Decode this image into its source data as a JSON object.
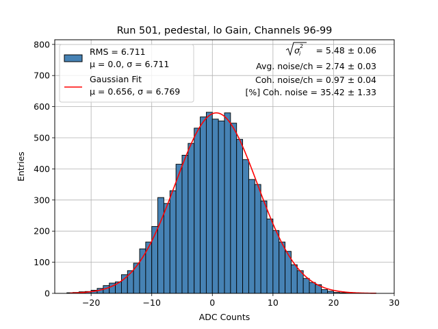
{
  "chart_data": {
    "type": "bar",
    "title": "Run 501, pedestal, lo Gain, Channels 96-99",
    "xlabel": "ADC Counts",
    "ylabel": "Entries",
    "xlim": [
      -26,
      30
    ],
    "ylim": [
      0,
      815
    ],
    "grid": true,
    "xticks": [
      -20,
      -10,
      0,
      10,
      20,
      30
    ],
    "yticks": [
      0,
      100,
      200,
      300,
      400,
      500,
      600,
      700,
      800
    ],
    "bin_width": 1,
    "histogram": {
      "name": "RMS = 6.711",
      "stats_label": "μ = 0.0, σ = 6.711",
      "color": "#4682b4",
      "bin_edges_start": -24,
      "values": [
        2,
        3,
        5,
        6,
        10,
        16,
        25,
        33,
        37,
        60,
        73,
        97,
        143,
        165,
        215,
        308,
        289,
        330,
        415,
        444,
        482,
        531,
        567,
        582,
        560,
        554,
        580,
        547,
        495,
        430,
        366,
        350,
        297,
        239,
        202,
        165,
        135,
        92,
        73,
        48,
        35,
        28,
        12,
        7,
        3,
        2,
        1,
        0,
        1,
        0,
        1
      ]
    },
    "fit": {
      "name": "Gaussian Fit",
      "stats_label": "μ = 0.656, σ = 6.769",
      "color": "#ff0000",
      "mu": 0.656,
      "sigma": 6.769,
      "amplitude": 580,
      "x_range": [
        -23.5,
        27
      ]
    },
    "legend_position": "top-left",
    "annotations": [
      {
        "prefix": "σ",
        "suffix": " = 5.48 ± 0.06"
      },
      {
        "text": "Avg. noise/ch = 2.74 ± 0.03"
      },
      {
        "text": "Coh. noise/ch = 0.97 ± 0.04"
      },
      {
        "text": "[%] Coh. noise = 35.42 ± 1.33"
      }
    ]
  }
}
